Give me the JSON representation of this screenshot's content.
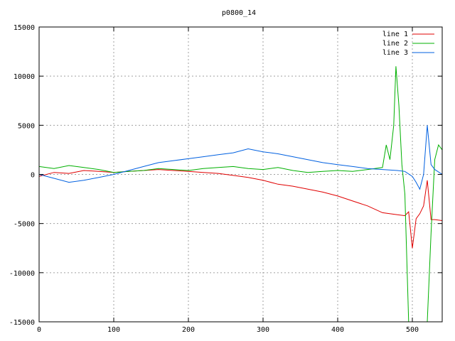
{
  "chart_data": {
    "type": "line",
    "title": "p0800_14",
    "xlabel": "",
    "ylabel": "",
    "xlim": [
      0,
      540
    ],
    "ylim": [
      -15000,
      15000
    ],
    "grid": true,
    "legend_position": "top-right",
    "x_ticks": [
      0,
      100,
      200,
      300,
      400,
      500
    ],
    "y_ticks": [
      -15000,
      -10000,
      -5000,
      0,
      5000,
      10000,
      15000
    ],
    "series": [
      {
        "name": "line 1",
        "color": "#e00000",
        "x": [
          0,
          20,
          40,
          60,
          80,
          100,
          120,
          140,
          160,
          180,
          200,
          220,
          240,
          260,
          280,
          300,
          320,
          340,
          360,
          380,
          400,
          420,
          440,
          460,
          480,
          490,
          495,
          500,
          505,
          510,
          515,
          520,
          525,
          530,
          540
        ],
        "y": [
          -200,
          200,
          100,
          400,
          300,
          200,
          300,
          400,
          500,
          400,
          300,
          200,
          100,
          -100,
          -300,
          -600,
          -1000,
          -1200,
          -1500,
          -1800,
          -2200,
          -2700,
          -3200,
          -3900,
          -4100,
          -4200,
          -3800,
          -7500,
          -4500,
          -4000,
          -3200,
          -600,
          -4600,
          -4600,
          -4700
        ]
      },
      {
        "name": "line 2",
        "color": "#00b000",
        "x": [
          0,
          20,
          40,
          60,
          80,
          100,
          120,
          140,
          160,
          180,
          200,
          220,
          240,
          260,
          280,
          300,
          320,
          340,
          360,
          380,
          400,
          420,
          440,
          460,
          465,
          470,
          475,
          478,
          482,
          486,
          490,
          495,
          500,
          505,
          510,
          515,
          520,
          525,
          530,
          535,
          540
        ],
        "y": [
          800,
          600,
          900,
          700,
          500,
          200,
          300,
          400,
          600,
          500,
          400,
          600,
          700,
          800,
          600,
          500,
          700,
          400,
          200,
          300,
          400,
          300,
          500,
          700,
          3000,
          1500,
          5000,
          11000,
          7000,
          1000,
          -2000,
          -15000,
          -15000,
          -15000,
          -15000,
          -15000,
          -15000,
          -6000,
          1500,
          3000,
          2500
        ]
      },
      {
        "name": "line 3",
        "color": "#0060e0",
        "x": [
          0,
          20,
          40,
          60,
          80,
          100,
          120,
          140,
          160,
          180,
          200,
          220,
          240,
          260,
          280,
          300,
          320,
          340,
          360,
          380,
          400,
          420,
          440,
          460,
          480,
          490,
          500,
          505,
          510,
          515,
          520,
          525,
          530,
          540
        ],
        "y": [
          0,
          -400,
          -800,
          -600,
          -300,
          0,
          400,
          800,
          1200,
          1400,
          1600,
          1800,
          2000,
          2200,
          2600,
          2300,
          2100,
          1800,
          1500,
          1200,
          1000,
          800,
          600,
          500,
          400,
          300,
          -200,
          -800,
          -1500,
          0,
          5000,
          1000,
          500,
          0
        ]
      }
    ]
  }
}
